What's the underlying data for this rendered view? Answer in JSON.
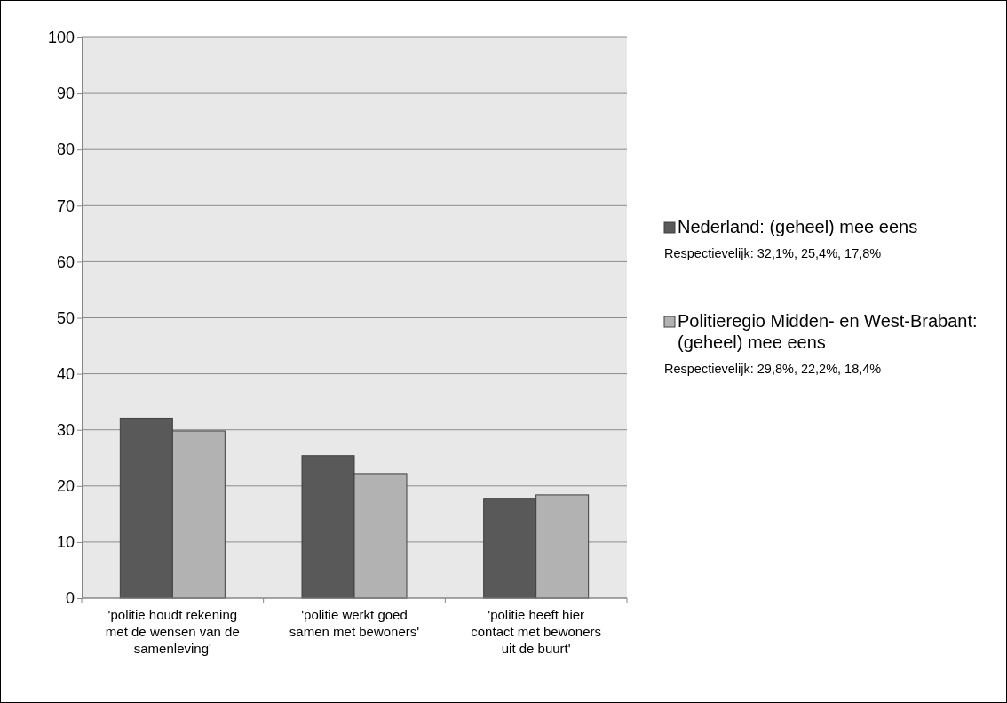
{
  "chart_data": {
    "type": "bar",
    "categories": [
      "'politie houdt rekening met de wensen van de samenleving'",
      "'politie werkt goed samen met bewoners'",
      "'politie heeft hier contact met bewoners uit de buurt'"
    ],
    "series": [
      {
        "name": "Nederland: (geheel) mee eens",
        "color": "#595959",
        "values": [
          32.1,
          25.4,
          17.8
        ]
      },
      {
        "name": "Politieregio Midden- en West-Brabant: (geheel) mee eens",
        "color": "#b2b2b2",
        "values": [
          29.8,
          22.2,
          18.4
        ]
      }
    ],
    "ylim": [
      0,
      100
    ],
    "yticks": [
      0,
      10,
      20,
      30,
      40,
      50,
      60,
      70,
      80,
      90,
      100
    ],
    "grid": "y",
    "legend": "right",
    "annotations": [
      "Respectievelijk: 32,1%, 25,4%, 17,8%",
      "Respectievelijk: 29,8%, 22,2%, 18,4%"
    ]
  }
}
